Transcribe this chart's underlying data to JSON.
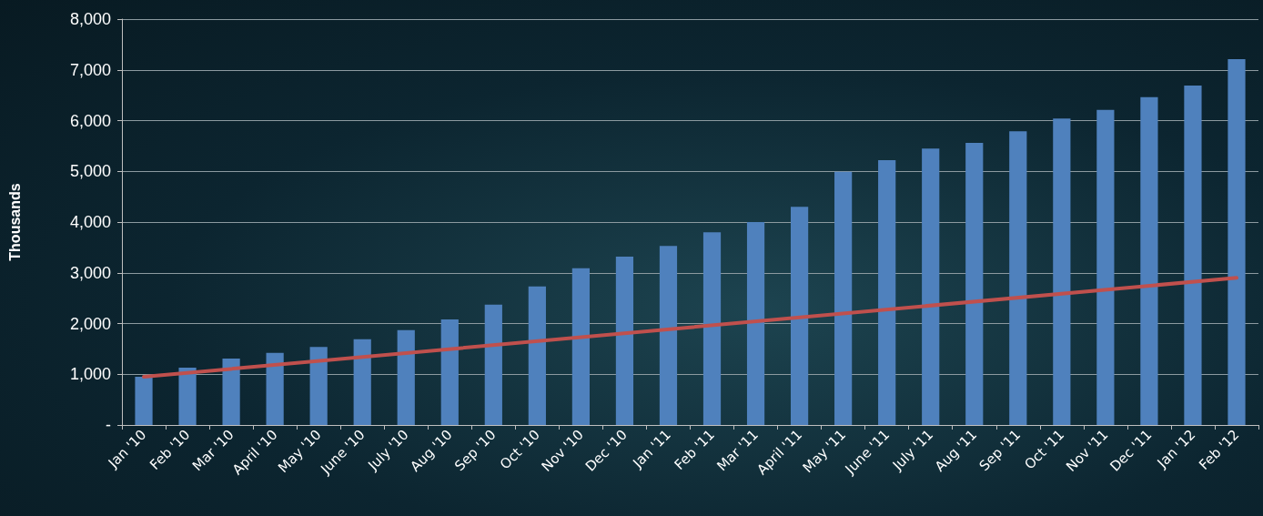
{
  "chart_data": {
    "type": "bar",
    "ylabel": "Thousands",
    "categories": [
      "Jan '10",
      "Feb '10",
      "Mar '10",
      "April '10",
      "May '10",
      "June '10",
      "July '10",
      "Aug '10",
      "Sep '10",
      "Oct '10",
      "Nov '10",
      "Dec '10",
      "Jan '11",
      "Feb '11",
      "Mar '11",
      "April '11",
      "May '11",
      "June '11",
      "July '11",
      "Aug '11",
      "Sep '11",
      "Oct '11",
      "Nov '11",
      "Dec '11",
      "Jan '12",
      "Feb '12"
    ],
    "series": [
      {
        "color": "#4f81bd",
        "values": [
          950,
          1130,
          1310,
          1420,
          1540,
          1690,
          1870,
          2080,
          2370,
          2730,
          3090,
          3320,
          3530,
          3800,
          4000,
          4300,
          4990,
          5220,
          5450,
          5560,
          5790,
          6040,
          6210,
          6460,
          6690,
          7210
        ]
      },
      {
        "type": "line",
        "color": "#c0504d",
        "x": [
          "Jan '10",
          "Feb '12"
        ],
        "values": [
          950,
          2900
        ]
      }
    ],
    "ylim": [
      0,
      8000
    ],
    "yticks": [
      {
        "value": 0,
        "label": "-"
      },
      {
        "value": 1000,
        "label": "1,000"
      },
      {
        "value": 2000,
        "label": "2,000"
      },
      {
        "value": 3000,
        "label": "3,000"
      },
      {
        "value": 4000,
        "label": "4,000"
      },
      {
        "value": 5000,
        "label": "5,000"
      },
      {
        "value": 6000,
        "label": "6,000"
      },
      {
        "value": 7000,
        "label": "7,000"
      },
      {
        "value": 8000,
        "label": "8,000"
      }
    ],
    "grid": "y",
    "marker": "none",
    "line_style": "solid"
  }
}
